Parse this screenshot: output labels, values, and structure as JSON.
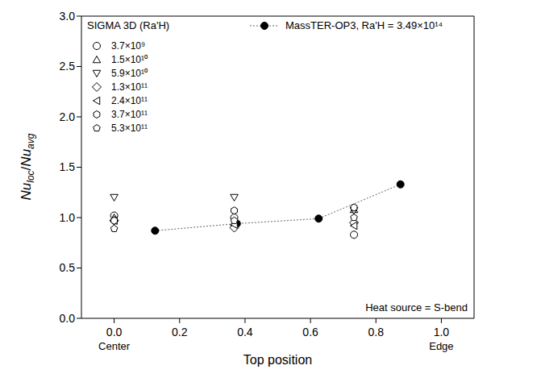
{
  "chart_data": {
    "type": "scatter",
    "x_label": "Top position",
    "y_label": "Nuloc/Nuavg",
    "legend_title": "SIGMA 3D (Ra'H)",
    "legend": "upper left",
    "xlim": [
      -0.1,
      1.1
    ],
    "ylim": [
      0,
      3
    ],
    "xticks": [
      {
        "value": 0,
        "label": "0.0"
      },
      0.2,
      0.4,
      0.6,
      0.8,
      {
        "value": 1,
        "label": "1.0"
      }
    ],
    "yticks": [
      {
        "value": 0,
        "label": "0.0"
      },
      0.5,
      {
        "value": 1,
        "label": "1.0"
      },
      1.5,
      {
        "value": 2,
        "label": "2.0"
      },
      2.5,
      {
        "value": 3,
        "label": "3.0"
      }
    ],
    "annotations": [
      {
        "text": "Center",
        "x": 0
      },
      {
        "text": "Edge",
        "x": 1
      },
      {
        "text": "Heat source = S-bend"
      }
    ],
    "series": [
      {
        "name": "3.7×10⁹",
        "color": "#000000",
        "marker": "circle",
        "x": [
          0,
          0.367,
          0.733
        ],
        "values": [
          1.02,
          1.0,
          0.83
        ]
      },
      {
        "name": "1.5×10¹⁰",
        "color": "#000000",
        "marker": "triangle-up",
        "x": [
          0,
          0.367,
          0.733
        ],
        "values": [
          1.0,
          0.95,
          1.08
        ]
      },
      {
        "name": "5.9×10¹⁰",
        "color": "#000000",
        "marker": "triangle-down",
        "x": [
          0,
          0.367,
          0.733
        ],
        "values": [
          1.2,
          1.2,
          1.07
        ]
      },
      {
        "name": "1.3×10¹¹",
        "color": "#000000",
        "marker": "diamond",
        "x": [
          0,
          0.367,
          0.733
        ],
        "values": [
          0.97,
          0.9,
          0.95
        ]
      },
      {
        "name": "2.4×10¹¹",
        "color": "#000000",
        "marker": "triangle-left",
        "x": [
          0,
          0.367,
          0.733
        ],
        "values": [
          0.97,
          0.93,
          0.92
        ]
      },
      {
        "name": "3.7×10¹¹",
        "color": "#000000",
        "marker": "hexagon",
        "x": [
          0,
          0.367,
          0.733
        ],
        "values": [
          0.97,
          1.07,
          1.1
        ]
      },
      {
        "name": "5.3×10¹¹",
        "color": "#000000",
        "marker": "pentagon",
        "x": [
          0,
          0.367,
          0.733
        ],
        "values": [
          0.89,
          0.97,
          1.0
        ]
      },
      {
        "name": "MassTER-OP3,  Ra'H = 3.49×10¹⁴",
        "color": "#000000",
        "marker": "filled-circle",
        "line_style": "dotted",
        "x": [
          0.125,
          0.375,
          0.625,
          0.875
        ],
        "values": [
          0.87,
          0.94,
          0.99,
          1.33
        ]
      }
    ]
  }
}
